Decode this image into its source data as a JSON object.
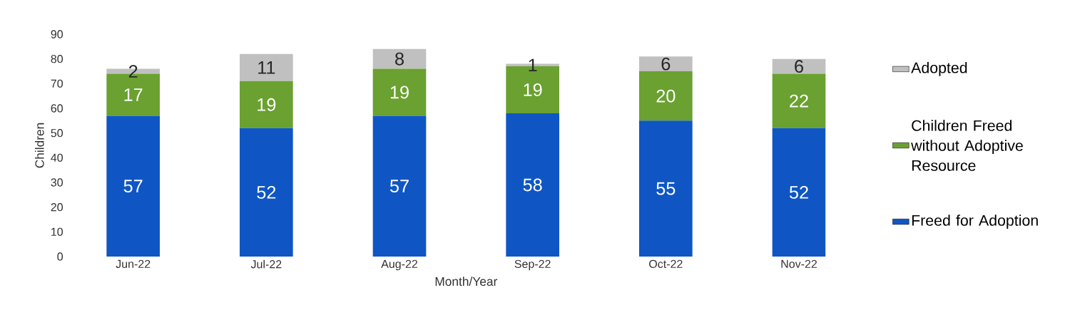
{
  "chart_data": {
    "type": "bar",
    "stacked": true,
    "xlabel": "Month/Year",
    "ylabel": "Children",
    "categories": [
      "Jun-22",
      "Jul-22",
      "Aug-22",
      "Sep-22",
      "Oct-22",
      "Nov-22"
    ],
    "series": [
      {
        "name": "Freed for Adoption",
        "color": "#0f56c4",
        "values": [
          57,
          52,
          57,
          58,
          55,
          52
        ]
      },
      {
        "name": "Children Freed without Adoptive Resource",
        "color": "#6aa130",
        "values": [
          17,
          19,
          19,
          19,
          20,
          22
        ]
      },
      {
        "name": "Adopted",
        "color": "#c0c0c0",
        "values": [
          2,
          11,
          8,
          1,
          6,
          6
        ]
      }
    ],
    "ylim": [
      0,
      90
    ],
    "yticks": [
      0,
      10,
      20,
      30,
      40,
      50,
      60,
      70,
      80,
      90
    ],
    "data_labels": true,
    "grid": false,
    "legend": "right"
  }
}
